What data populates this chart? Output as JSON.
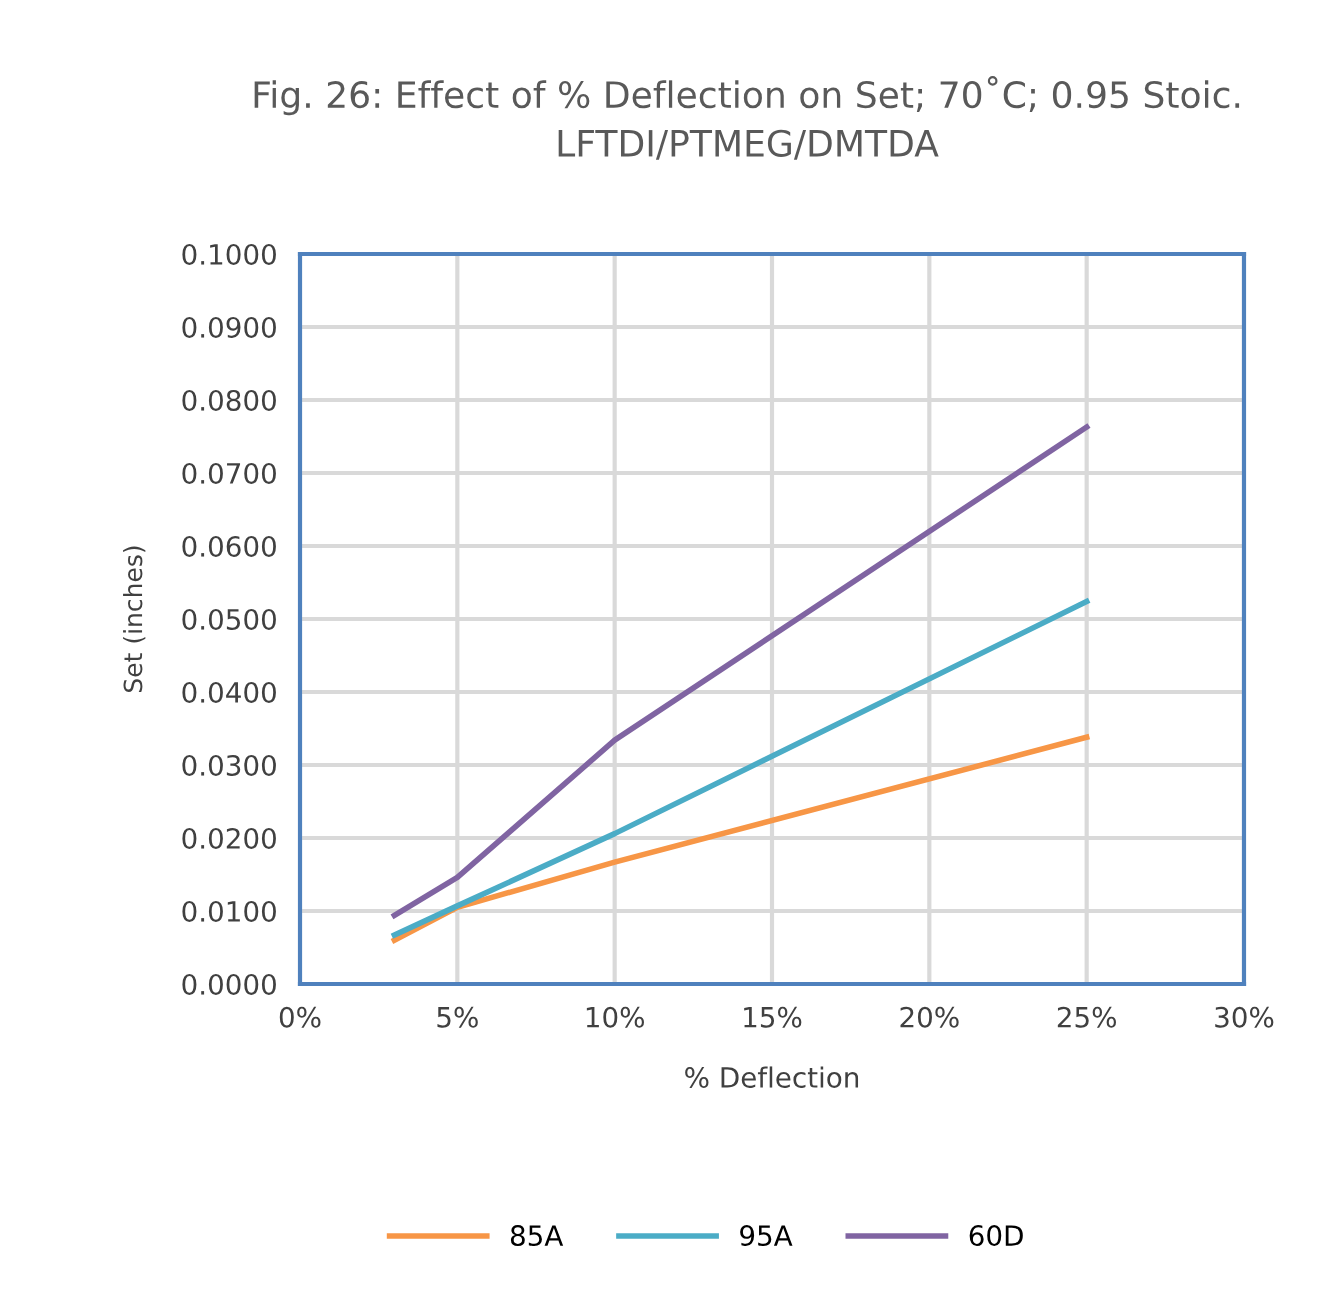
{
  "chart_data": {
    "type": "line",
    "title": "Fig. 26: Effect of % Deflection on Set; 70˚C; 0.95 Stoic.\nLFTDI/PTMEG/DMTDA",
    "xlabel": "% Deflection",
    "ylabel": "Set (inches)",
    "x": [
      3,
      5,
      10,
      25
    ],
    "series": [
      {
        "name": "85A",
        "color": "#f79646",
        "values": [
          0.006,
          0.0105,
          0.0167,
          0.0338
        ]
      },
      {
        "name": "95A",
        "color": "#4bacc6",
        "values": [
          0.0067,
          0.0107,
          0.0206,
          0.0524
        ]
      },
      {
        "name": "60D",
        "color": "#8064a2",
        "values": [
          0.0094,
          0.0146,
          0.0334,
          0.0763
        ]
      }
    ],
    "xlim": [
      0,
      30
    ],
    "xticks": [
      {
        "value": 0,
        "label": "0%"
      },
      {
        "value": 5,
        "label": "5%"
      },
      {
        "value": 10,
        "label": "10%"
      },
      {
        "value": 15,
        "label": "15%"
      },
      {
        "value": 20,
        "label": "20%"
      },
      {
        "value": 25,
        "label": "25%"
      },
      {
        "value": 30,
        "label": "30%"
      }
    ],
    "ylim": [
      0,
      0.1
    ],
    "yticks": [
      {
        "value": 0,
        "label": "0.0000"
      },
      {
        "value": 0.01,
        "label": "0.0100"
      },
      {
        "value": 0.02,
        "label": "0.0200"
      },
      {
        "value": 0.03,
        "label": "0.0300"
      },
      {
        "value": 0.04,
        "label": "0.0400"
      },
      {
        "value": 0.05,
        "label": "0.0500"
      },
      {
        "value": 0.06,
        "label": "0.0600"
      },
      {
        "value": 0.07,
        "label": "0.0700"
      },
      {
        "value": 0.08,
        "label": "0.0800"
      },
      {
        "value": 0.09,
        "label": "0.0900"
      },
      {
        "value": 0.1,
        "label": "0.1000"
      }
    ],
    "grid": true,
    "legend": "bottom",
    "marker": "none",
    "line_style": "solid"
  }
}
